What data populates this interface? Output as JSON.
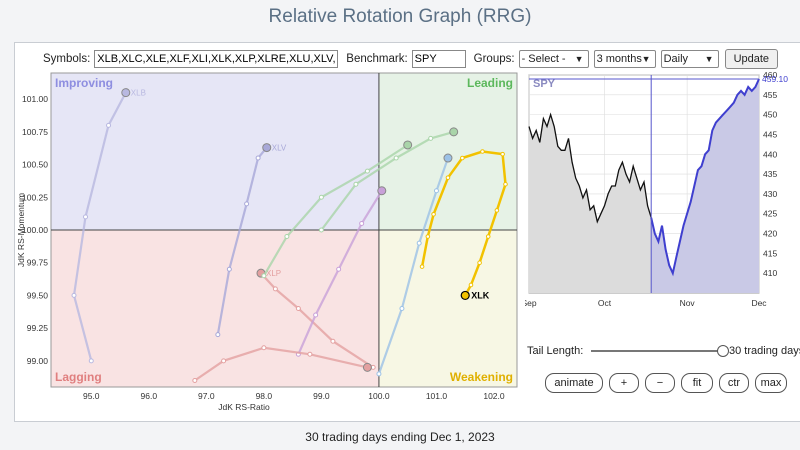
{
  "page": {
    "title": "Relative Rotation Graph (RRG)",
    "footer": "30 trading days ending Dec 1, 2023"
  },
  "controls": {
    "symbols_label": "Symbols:",
    "symbols_value": "XLB,XLC,XLE,XLF,XLI,XLK,XLP,XLRE,XLU,XLV,XLY",
    "benchmark_label": "Benchmark:",
    "benchmark_value": "SPY",
    "groups_label": "Groups:",
    "groups_value": "- Select -",
    "period_value": "3 months",
    "frequency_value": "Daily",
    "update_label": "Update"
  },
  "tail": {
    "label": "Tail Length:",
    "value_text": "30 trading days"
  },
  "buttons": {
    "animate": "animate",
    "plus": "+",
    "minus": "−",
    "fit": "fit",
    "ctr": "ctr",
    "max": "max"
  },
  "colors": {
    "improving": "#e6e6f6",
    "leading": "#e6f2e6",
    "weakening": "#f7f7e4",
    "lagging": "#f9e3e3",
    "xlk_tail": "#f2c200",
    "spy_line": "#3f3fcf"
  },
  "chart_data": [
    {
      "type": "scatter",
      "title": "",
      "xlabel": "JdK RS-Ratio",
      "ylabel": "JdK RS-Momentum",
      "xlim": [
        94.3,
        102.4
      ],
      "ylim": [
        98.8,
        101.2
      ],
      "xticks": [
        95.0,
        96.0,
        97.0,
        98.0,
        99.0,
        100.0,
        101.0,
        102.0
      ],
      "xtick_labels": [
        "95.0",
        "96.0",
        "97.0",
        "98.0",
        "99.0",
        "100.0",
        "101.0",
        "102.0"
      ],
      "yticks": [
        99.0,
        99.25,
        99.5,
        99.75,
        100.0,
        100.25,
        100.5,
        100.75,
        101.0
      ],
      "ytick_labels": [
        "99.00",
        "99.25",
        "99.50",
        "99.75",
        "100.00",
        "100.25",
        "100.50",
        "100.75",
        "101.00"
      ],
      "quadrants": [
        "Improving",
        "Leading",
        "Weakening",
        "Lagging"
      ],
      "highlight": {
        "symbol": "XLK",
        "tail": [
          [
            100.75,
            99.72
          ],
          [
            100.85,
            99.95
          ],
          [
            100.95,
            100.12
          ],
          [
            101.2,
            100.4
          ],
          [
            101.45,
            100.55
          ],
          [
            101.8,
            100.6
          ],
          [
            102.15,
            100.58
          ],
          [
            102.2,
            100.35
          ],
          [
            102.05,
            100.15
          ],
          [
            101.9,
            99.95
          ],
          [
            101.75,
            99.75
          ],
          [
            101.6,
            99.58
          ],
          [
            101.5,
            99.5
          ]
        ]
      },
      "series": [
        {
          "label": "XLB",
          "color": "#b8b8e0",
          "tail": [
            [
              95.0,
              99.0
            ],
            [
              94.7,
              99.5
            ],
            [
              94.9,
              100.1
            ],
            [
              95.3,
              100.8
            ],
            [
              95.6,
              101.05
            ]
          ]
        },
        {
          "label": "XLV",
          "color": "#a8a8d8",
          "tail": [
            [
              97.2,
              99.2
            ],
            [
              97.4,
              99.7
            ],
            [
              97.7,
              100.2
            ],
            [
              97.9,
              100.55
            ],
            [
              98.05,
              100.63
            ]
          ]
        },
        {
          "label": "XLP",
          "color": "#e3a0a0",
          "tail": [
            [
              99.9,
              98.95
            ],
            [
              99.2,
              99.15
            ],
            [
              98.6,
              99.4
            ],
            [
              98.2,
              99.55
            ],
            [
              97.95,
              99.67
            ]
          ]
        },
        {
          "label": "",
          "color": "#c8a0d8",
          "tail": [
            [
              98.6,
              99.05
            ],
            [
              98.9,
              99.35
            ],
            [
              99.3,
              99.7
            ],
            [
              99.7,
              100.05
            ],
            [
              100.05,
              100.3
            ]
          ]
        },
        {
          "label": "",
          "color": "#a9d4a9",
          "tail": [
            [
              99.0,
              100.0
            ],
            [
              99.6,
              100.35
            ],
            [
              100.3,
              100.55
            ],
            [
              100.9,
              100.7
            ],
            [
              101.3,
              100.75
            ]
          ]
        },
        {
          "label": "",
          "color": "#a9d4a9",
          "tail": [
            [
              98.0,
              99.65
            ],
            [
              98.4,
              99.95
            ],
            [
              99.0,
              100.25
            ],
            [
              99.8,
              100.45
            ],
            [
              100.5,
              100.65
            ]
          ]
        },
        {
          "label": "",
          "color": "#9bc1e6",
          "tail": [
            [
              100.0,
              98.9
            ],
            [
              100.4,
              99.4
            ],
            [
              100.7,
              99.9
            ],
            [
              101.0,
              100.3
            ],
            [
              101.2,
              100.55
            ]
          ]
        },
        {
          "label": "",
          "color": "#e3a0a0",
          "tail": [
            [
              96.8,
              98.85
            ],
            [
              97.3,
              99.0
            ],
            [
              98.0,
              99.1
            ],
            [
              98.8,
              99.05
            ],
            [
              99.8,
              98.95
            ]
          ]
        }
      ]
    },
    {
      "type": "line",
      "title": "SPY",
      "xlabel": "",
      "ylabel": "",
      "ylim": [
        405,
        460
      ],
      "yticks": [
        410,
        415,
        420,
        425,
        430,
        435,
        440,
        445,
        450,
        455,
        460
      ],
      "ytick_labels": [
        "410",
        "415",
        "420",
        "425",
        "430",
        "435",
        "440",
        "445",
        "450",
        "455",
        "460"
      ],
      "xtick_labels": [
        {
          "label": "Sep",
          "x": 0
        },
        {
          "label": "Oct",
          "x": 21
        },
        {
          "label": "Nov",
          "x": 44
        },
        {
          "label": "Dec",
          "x": 64
        }
      ],
      "last_value_label": "459.10",
      "tail_start_index": 34,
      "values": [
        447,
        444,
        446,
        443,
        449,
        447,
        450,
        447,
        442,
        441,
        441,
        444,
        438,
        434,
        432,
        429,
        431,
        426,
        427,
        423,
        425,
        427,
        430,
        432,
        432,
        436,
        438,
        435,
        433,
        437,
        434,
        431,
        433,
        427,
        424,
        420,
        418,
        422,
        416,
        412,
        410,
        414,
        418,
        422,
        425,
        428,
        432,
        436,
        437,
        440,
        441,
        446,
        448,
        449,
        450,
        451,
        452,
        453,
        455,
        456,
        455,
        457,
        456,
        457,
        459
      ]
    }
  ]
}
